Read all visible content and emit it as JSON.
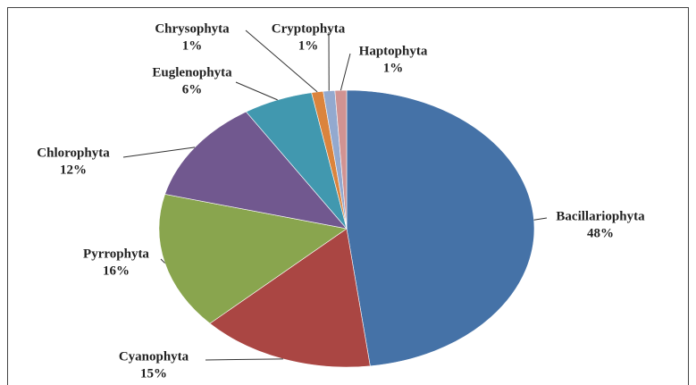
{
  "chart_data": {
    "type": "pie",
    "categories": [
      "Bacillariophyta",
      "Cyanophyta",
      "Pyrrophyta",
      "Chlorophyta",
      "Euglenophyta",
      "Chrysophyta",
      "Cryptophyta",
      "Haptophyta"
    ],
    "values": [
      48,
      15,
      16,
      12,
      6,
      1,
      1,
      1
    ],
    "value_labels": [
      "48%",
      "15%",
      "16%",
      "12%",
      "6%",
      "1%",
      "1%",
      "1%"
    ],
    "colors": [
      "#4572a7",
      "#aa4643",
      "#89a54e",
      "#71588f",
      "#4198af",
      "#db843d",
      "#93a9cf",
      "#d19392"
    ]
  }
}
